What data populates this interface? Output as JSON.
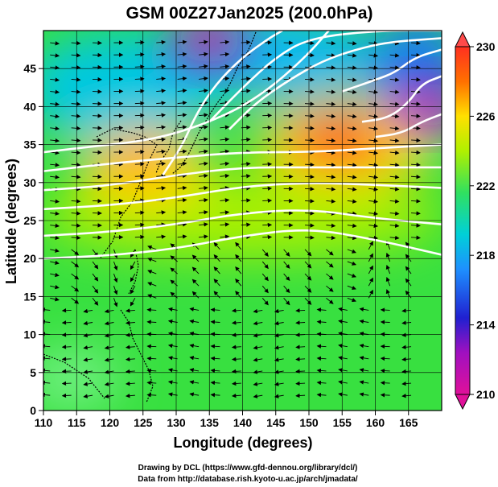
{
  "chart_data": {
    "type": "heatmap",
    "title": "GSM 00Z27Jan2025 (200.0hPa)",
    "xlabel": "Longitude (degrees)",
    "ylabel": "Latitude  (degrees)",
    "xlim": [
      110,
      170
    ],
    "ylim": [
      0,
      50
    ],
    "x_ticks": [
      "110",
      "115",
      "120",
      "125",
      "130",
      "135",
      "140",
      "145",
      "150",
      "155",
      "160",
      "165"
    ],
    "y_ticks": [
      "0",
      "5",
      "10",
      "15",
      "20",
      "25",
      "30",
      "35",
      "40",
      "45"
    ],
    "colorbar": {
      "ticks": [
        "210",
        "214",
        "218",
        "222",
        "226",
        "230"
      ],
      "range": [
        210,
        230
      ],
      "colors": [
        "#e0109a",
        "#2020d0",
        "#1e90ff",
        "#00d0d8",
        "#30e060",
        "#b0f000",
        "#ffe000",
        "#ff7000",
        "#ff3020"
      ]
    },
    "features": {
      "warm_core_east": {
        "lon": 153,
        "lat": 38,
        "value": 229
      },
      "warm_core_west": {
        "lon": 125,
        "lat": 34,
        "value": 226
      },
      "cold_core_northwest": {
        "lon": 133,
        "lat": 49,
        "value": 211
      },
      "cold_core_northeast": {
        "lon": 167,
        "lat": 43,
        "value": 212
      }
    },
    "contours": [
      {
        "label": "",
        "points": [
          [
            110,
            20
          ],
          [
            120,
            20.4
          ],
          [
            130,
            21.3
          ],
          [
            140,
            23
          ],
          [
            150,
            24
          ],
          [
            160,
            22.5
          ],
          [
            170,
            20.5
          ]
        ]
      },
      {
        "label": "",
        "points": [
          [
            110,
            23
          ],
          [
            120,
            23.5
          ],
          [
            130,
            24.5
          ],
          [
            140,
            26
          ],
          [
            150,
            26.5
          ],
          [
            160,
            25.3
          ],
          [
            170,
            24.5
          ]
        ]
      },
      {
        "label": "",
        "points": [
          [
            110,
            26.5
          ],
          [
            120,
            27
          ],
          [
            130,
            28
          ],
          [
            140,
            29.5
          ],
          [
            150,
            30
          ],
          [
            160,
            29.7
          ],
          [
            170,
            29.3
          ]
        ]
      },
      {
        "label": "",
        "points": [
          [
            110,
            29
          ],
          [
            120,
            29.6
          ],
          [
            130,
            31
          ],
          [
            140,
            32
          ],
          [
            150,
            32
          ],
          [
            160,
            32
          ],
          [
            170,
            32
          ]
        ]
      },
      {
        "label": "",
        "points": [
          [
            110,
            31.5
          ],
          [
            120,
            32.5
          ],
          [
            130,
            33.3
          ],
          [
            140,
            34
          ],
          [
            150,
            34
          ],
          [
            160,
            34.5
          ],
          [
            170,
            35
          ]
        ]
      },
      {
        "label": "",
        "points": [
          [
            110,
            34
          ],
          [
            120,
            35
          ],
          [
            125,
            35.5
          ],
          [
            130,
            36.5
          ],
          [
            135,
            38
          ],
          [
            140,
            40
          ],
          [
            145,
            43
          ],
          [
            150,
            47
          ],
          [
            153,
            50
          ]
        ]
      },
      {
        "label": "",
        "points": [
          [
            128,
            31
          ],
          [
            131,
            35
          ],
          [
            133,
            39
          ],
          [
            136,
            43
          ],
          [
            140,
            46.5
          ],
          [
            144,
            49
          ],
          [
            146,
            50
          ]
        ]
      },
      {
        "label": "",
        "points": [
          [
            135,
            38
          ],
          [
            140,
            42.5
          ],
          [
            145,
            46.5
          ],
          [
            150,
            49
          ],
          [
            160,
            50
          ],
          [
            170,
            50
          ]
        ]
      },
      {
        "label": "",
        "points": [
          [
            138,
            37
          ],
          [
            142,
            40.5
          ],
          [
            147,
            43.5
          ],
          [
            152,
            46
          ],
          [
            157,
            47.5
          ],
          [
            162,
            48.5
          ],
          [
            170,
            49
          ]
        ]
      },
      {
        "label": "",
        "points": [
          [
            155,
            42
          ],
          [
            160,
            43.5
          ],
          [
            163,
            44.5
          ],
          [
            166,
            46.5
          ],
          [
            170,
            47.5
          ]
        ]
      },
      {
        "label": "",
        "points": [
          [
            158,
            38
          ],
          [
            162,
            38.5
          ],
          [
            165,
            40.5
          ],
          [
            167,
            43
          ],
          [
            170,
            44
          ]
        ]
      },
      {
        "label": "",
        "points": [
          [
            160,
            36
          ],
          [
            164,
            36.5
          ],
          [
            167,
            38
          ],
          [
            170,
            39
          ]
        ]
      }
    ],
    "grid": true
  },
  "credits": {
    "line1": "Drawing by DCL (https://www.gfd-dennou.org/library/dcl/)",
    "line2": "Data from http://database.rish.kyoto-u.ac.jp/arch/jmadata/"
  }
}
